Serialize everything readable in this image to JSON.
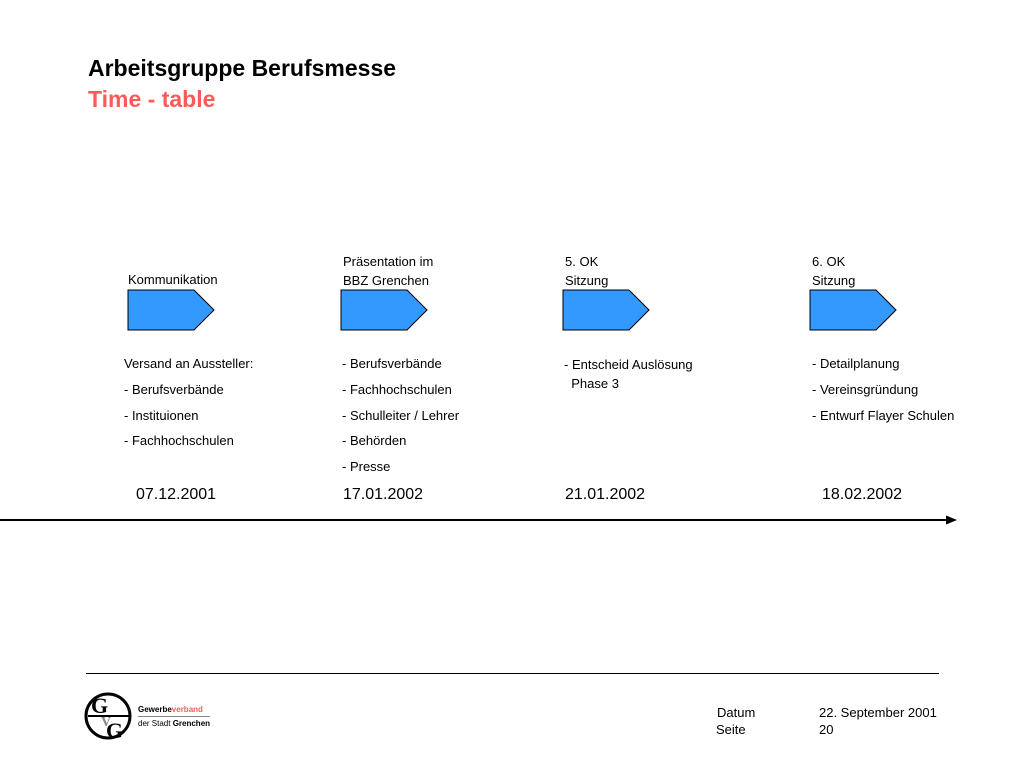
{
  "header": {
    "title": "Arbeitsgruppe Berufsmesse",
    "subtitle": "Time - table"
  },
  "milestones": [
    {
      "label_lines": [
        "Kommunikation"
      ],
      "items": [
        "Versand an Aussteller:",
        "- Berufsverbände",
        "- Instituionen",
        "- Fachhochschulen"
      ],
      "date": "07.12.2001"
    },
    {
      "label_lines": [
        "Präsentation im",
        "BBZ Grenchen"
      ],
      "items": [
        "- Berufsverbände",
        "- Fachhochschulen",
        "- Schulleiter / Lehrer",
        "- Behörden",
        "- Presse"
      ],
      "date": "17.01.2002"
    },
    {
      "label_lines": [
        "5. OK",
        "Sitzung"
      ],
      "items": [
        "- Entscheid Auslösung",
        "  Phase 3"
      ],
      "date": "21.01.2002"
    },
    {
      "label_lines": [
        "6. OK",
        "Sitzung"
      ],
      "items": [
        "- Detailplanung",
        "- Vereinsgründung",
        "- Entwurf Flayer Schulen"
      ],
      "date": "18.02.2002"
    }
  ],
  "colors": {
    "arrow_fill": "#3399ff",
    "subtitle": "#ff5a5a"
  },
  "footer": {
    "datum_label": "Datum",
    "datum_value": "22. September 2001",
    "seite_label": "Seite",
    "seite_value": "20",
    "logo": {
      "line1a": "Gewerbe",
      "line1b": "verband",
      "line2a": "der Stadt ",
      "line2b": "Grenchen",
      "letters": "GVG"
    }
  }
}
